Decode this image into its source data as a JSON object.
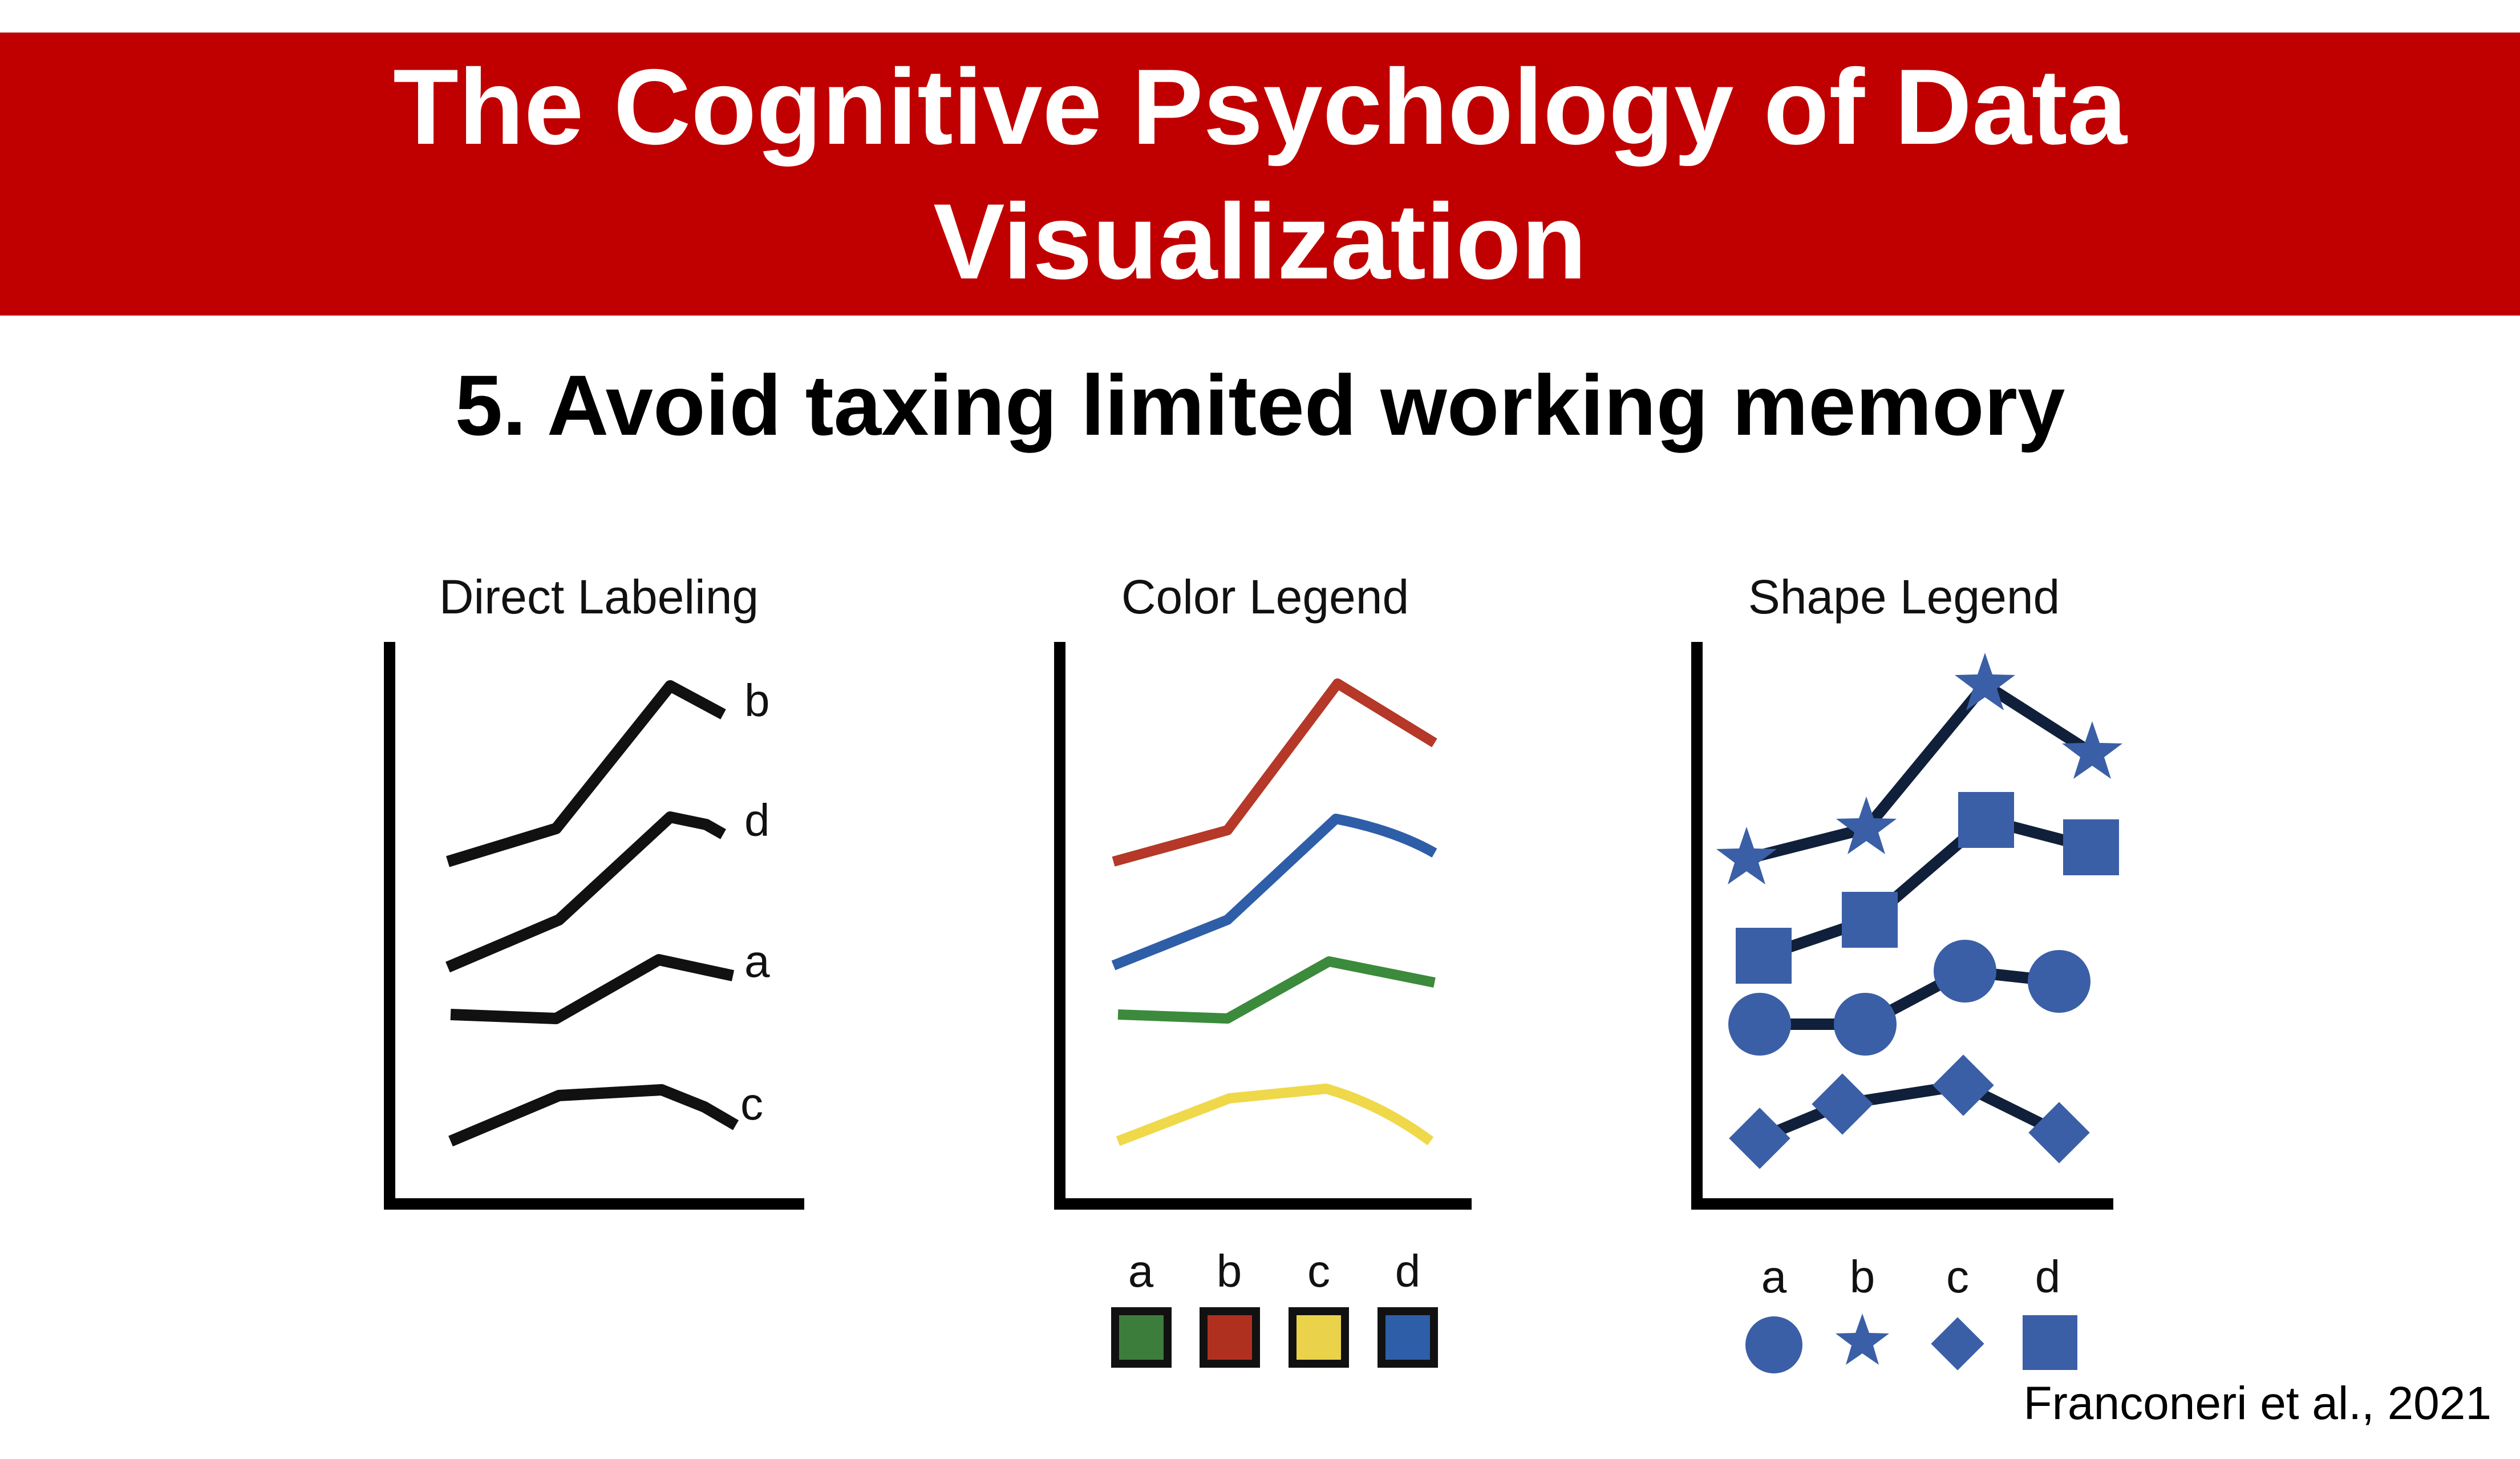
{
  "banner": {
    "title": "The Cognitive Psychology of Data Visualization",
    "background_color": "#c00000"
  },
  "subtitle": "5. Avoid taxing limited working memory",
  "citation": "Franconeri et al., 2021",
  "panels": [
    {
      "title": "Direct Labeling",
      "labels": [
        "b",
        "d",
        "a",
        "c"
      ]
    },
    {
      "title": "Color Legend",
      "legend": [
        {
          "label": "a",
          "color": "#3c7d3c"
        },
        {
          "label": "b",
          "color": "#b03020"
        },
        {
          "label": "c",
          "color": "#ead34b"
        },
        {
          "label": "d",
          "color": "#2f5ea8"
        }
      ]
    },
    {
      "title": "Shape Legend",
      "shape_color": "#3a5fa6",
      "legend": [
        {
          "label": "a",
          "shape": "circle"
        },
        {
          "label": "b",
          "shape": "star"
        },
        {
          "label": "c",
          "shape": "diamond"
        },
        {
          "label": "d",
          "shape": "square"
        }
      ]
    }
  ],
  "colors": {
    "line_red": "#b53828",
    "line_blue": "#2f5ea8",
    "line_green": "#3c8a3c",
    "line_yellow": "#efd84a",
    "shape_blue": "#3a5fa6",
    "shape_line": "#10203a"
  }
}
